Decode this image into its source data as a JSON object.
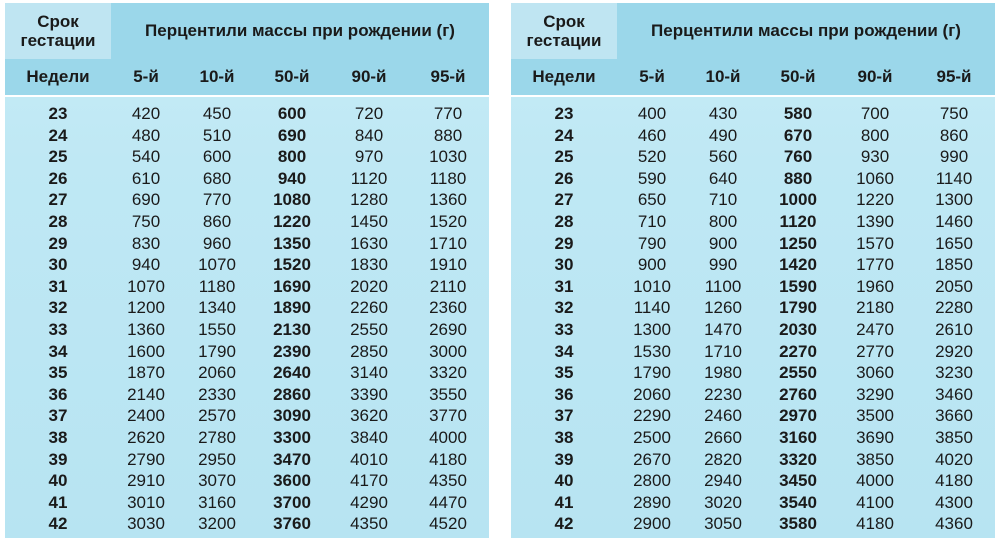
{
  "header": {
    "gestation_label_line1": "Срок",
    "gestation_label_line2": "гестации",
    "percentiles_title": "Перцентили массы при рождении (г)",
    "weeks_label": "Недели",
    "columns": [
      "5-й",
      "10-й",
      "50-й",
      "90-й",
      "95-й"
    ]
  },
  "tables": [
    {
      "rows": [
        [
          "23",
          "420",
          "450",
          "600",
          "720",
          "770"
        ],
        [
          "24",
          "480",
          "510",
          "690",
          "840",
          "880"
        ],
        [
          "25",
          "540",
          "600",
          "800",
          "970",
          "1030"
        ],
        [
          "26",
          "610",
          "680",
          "940",
          "1120",
          "1180"
        ],
        [
          "27",
          "690",
          "770",
          "1080",
          "1280",
          "1360"
        ],
        [
          "28",
          "750",
          "860",
          "1220",
          "1450",
          "1520"
        ],
        [
          "29",
          "830",
          "960",
          "1350",
          "1630",
          "1710"
        ],
        [
          "30",
          "940",
          "1070",
          "1520",
          "1830",
          "1910"
        ],
        [
          "31",
          "1070",
          "1180",
          "1690",
          "2020",
          "2110"
        ],
        [
          "32",
          "1200",
          "1340",
          "1890",
          "2260",
          "2360"
        ],
        [
          "33",
          "1360",
          "1550",
          "2130",
          "2550",
          "2690"
        ],
        [
          "34",
          "1600",
          "1790",
          "2390",
          "2850",
          "3000"
        ],
        [
          "35",
          "1870",
          "2060",
          "2640",
          "3140",
          "3320"
        ],
        [
          "36",
          "2140",
          "2330",
          "2860",
          "3390",
          "3550"
        ],
        [
          "37",
          "2400",
          "2570",
          "3090",
          "3620",
          "3770"
        ],
        [
          "38",
          "2620",
          "2780",
          "3300",
          "3840",
          "4000"
        ],
        [
          "39",
          "2790",
          "2950",
          "3470",
          "4010",
          "4180"
        ],
        [
          "40",
          "2910",
          "3070",
          "3600",
          "4170",
          "4350"
        ],
        [
          "41",
          "3010",
          "3160",
          "3700",
          "4290",
          "4470"
        ],
        [
          "42",
          "3030",
          "3200",
          "3760",
          "4350",
          "4520"
        ]
      ]
    },
    {
      "rows": [
        [
          "23",
          "400",
          "430",
          "580",
          "700",
          "750"
        ],
        [
          "24",
          "460",
          "490",
          "670",
          "800",
          "860"
        ],
        [
          "25",
          "520",
          "560",
          "760",
          "930",
          "990"
        ],
        [
          "26",
          "590",
          "640",
          "880",
          "1060",
          "1140"
        ],
        [
          "27",
          "650",
          "710",
          "1000",
          "1220",
          "1300"
        ],
        [
          "28",
          "710",
          "800",
          "1120",
          "1390",
          "1460"
        ],
        [
          "29",
          "790",
          "900",
          "1250",
          "1570",
          "1650"
        ],
        [
          "30",
          "900",
          "990",
          "1420",
          "1770",
          "1850"
        ],
        [
          "31",
          "1010",
          "1100",
          "1590",
          "1960",
          "2050"
        ],
        [
          "32",
          "1140",
          "1260",
          "1790",
          "2180",
          "2280"
        ],
        [
          "33",
          "1300",
          "1470",
          "2030",
          "2470",
          "2610"
        ],
        [
          "34",
          "1530",
          "1710",
          "2270",
          "2770",
          "2920"
        ],
        [
          "35",
          "1790",
          "1980",
          "2550",
          "3060",
          "3230"
        ],
        [
          "36",
          "2060",
          "2230",
          "2760",
          "3290",
          "3460"
        ],
        [
          "37",
          "2290",
          "2460",
          "2970",
          "3500",
          "3660"
        ],
        [
          "38",
          "2500",
          "2660",
          "3160",
          "3690",
          "3850"
        ],
        [
          "39",
          "2670",
          "2820",
          "3320",
          "3850",
          "4020"
        ],
        [
          "40",
          "2800",
          "2940",
          "3450",
          "4000",
          "4180"
        ],
        [
          "41",
          "2890",
          "3020",
          "3540",
          "4100",
          "4300"
        ],
        [
          "42",
          "2900",
          "3050",
          "3580",
          "4180",
          "4360"
        ]
      ]
    }
  ]
}
